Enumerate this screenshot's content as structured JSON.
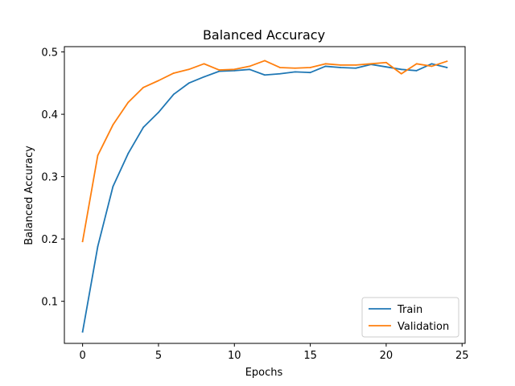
{
  "chart_data": {
    "type": "line",
    "title": "Balanced Accuracy",
    "xlabel": "Epochs",
    "ylabel": "Balanced Accuracy",
    "xlim": [
      -1.2,
      25.2
    ],
    "ylim": [
      0.0325,
      0.5085
    ],
    "xticks": [
      0,
      5,
      10,
      15,
      20,
      25
    ],
    "yticks": [
      0.1,
      0.2,
      0.3,
      0.4,
      0.5
    ],
    "grid": false,
    "legend_position": "lower-right",
    "x": [
      0,
      1,
      2,
      3,
      4,
      5,
      6,
      7,
      8,
      9,
      10,
      11,
      12,
      13,
      14,
      15,
      16,
      17,
      18,
      19,
      20,
      21,
      22,
      23,
      24
    ],
    "series": [
      {
        "name": "Train",
        "color": "#1f77b4",
        "values": [
          0.051,
          0.188,
          0.284,
          0.337,
          0.379,
          0.403,
          0.432,
          0.45,
          0.46,
          0.469,
          0.47,
          0.472,
          0.463,
          0.465,
          0.468,
          0.467,
          0.477,
          0.475,
          0.474,
          0.48,
          0.476,
          0.472,
          0.47,
          0.481,
          0.475
        ]
      },
      {
        "name": "Validation",
        "color": "#ff7f0e",
        "values": [
          0.196,
          0.334,
          0.383,
          0.419,
          0.443,
          0.454,
          0.466,
          0.472,
          0.481,
          0.471,
          0.472,
          0.477,
          0.486,
          0.475,
          0.474,
          0.475,
          0.481,
          0.479,
          0.479,
          0.481,
          0.483,
          0.465,
          0.481,
          0.477,
          0.485
        ]
      }
    ]
  }
}
